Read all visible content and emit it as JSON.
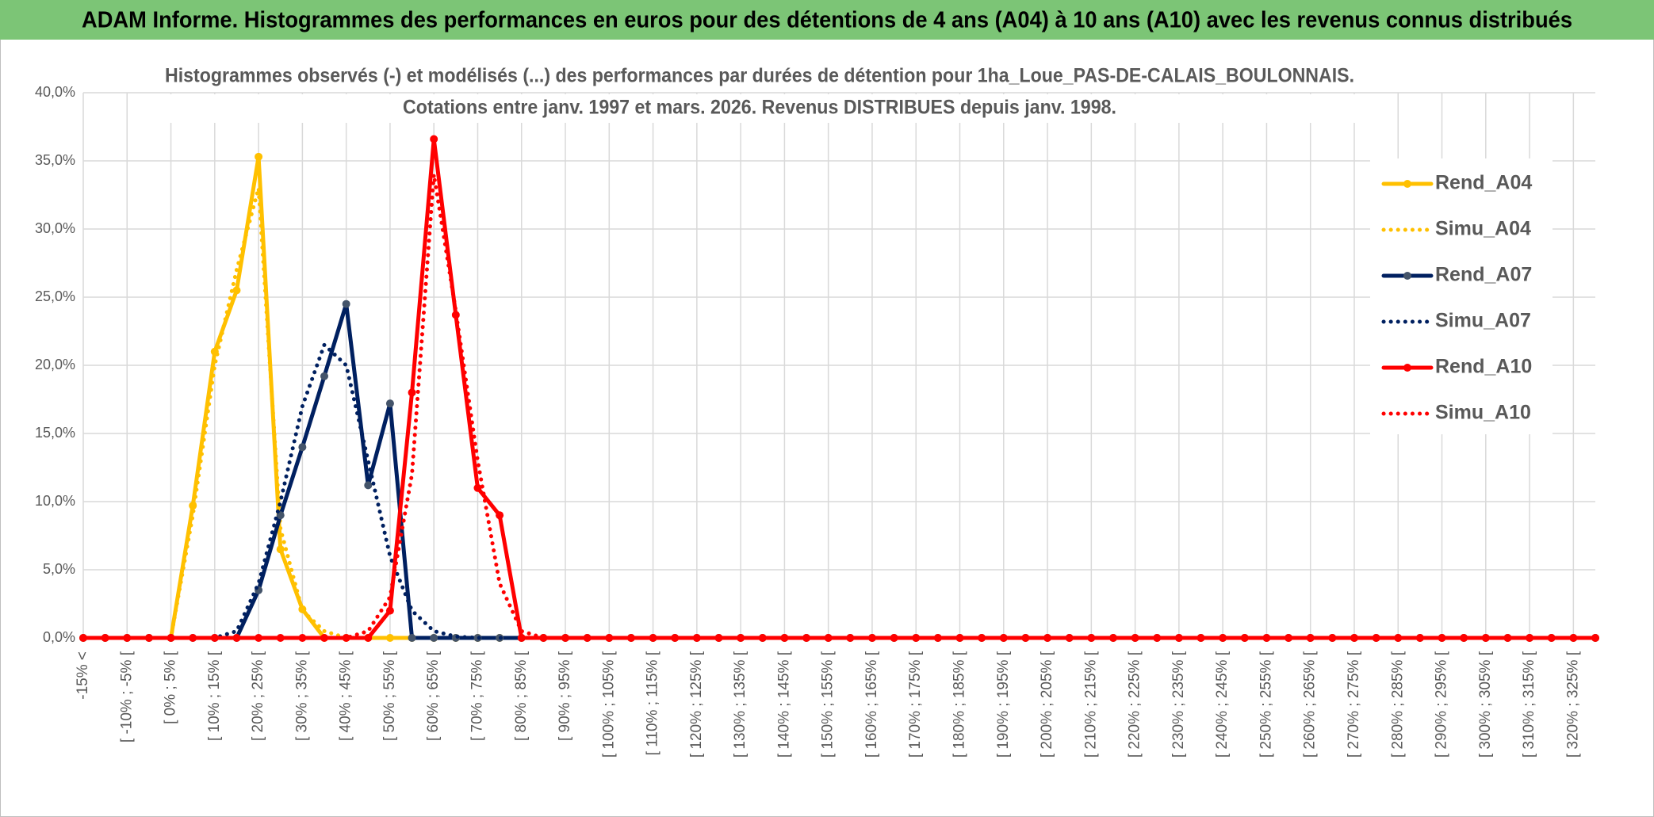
{
  "header": {
    "title": "ADAM Informe. Histogrammes des performances en euros pour des détentions de 4 ans (A04) à 10 ans (A10) avec les revenus connus distribués"
  },
  "chart_data": {
    "type": "line",
    "title": [
      "Histogrammes observés (-) et modélisés (...) des performances par durées de détention pour 1ha_Loue_PAS-DE-CALAIS_BOULONNAIS.",
      "Cotations entre janv. 1997 et mars. 2026. Revenus DISTRIBUES depuis janv. 1998."
    ],
    "categories": [
      "-15% <",
      null,
      "[ -10% ; -5% [",
      null,
      "[ 0% ; 5% [",
      null,
      "[ 10% ; 15% [",
      null,
      "[ 20% ; 25% [",
      null,
      "[ 30% ; 35% [",
      null,
      "[ 40% ; 45% [",
      null,
      "[ 50% ; 55% [",
      null,
      "[ 60% ; 65% [",
      null,
      "[ 70% ; 75% [",
      null,
      "[ 80% ; 85% [",
      null,
      "[ 90% ; 95% [",
      null,
      "[ 100% ; 105% [",
      null,
      "[ 110% ; 115% [",
      null,
      "[ 120% ; 125% [",
      null,
      "[ 130% ; 135% [",
      null,
      "[ 140% ; 145% [",
      null,
      "[ 150% ; 155% [",
      null,
      "[ 160% ; 165% [",
      null,
      "[ 170% ; 175% [",
      null,
      "[ 180% ; 185% [",
      null,
      "[ 190% ; 195% [",
      null,
      "[ 200% ; 205% [",
      null,
      "[ 210% ; 215% [",
      null,
      "[ 220% ; 225% [",
      null,
      "[ 230% ; 235% [",
      null,
      "[ 240% ; 245% [",
      null,
      "[ 250% ; 255% [",
      null,
      "[ 260% ; 265% [",
      null,
      "[ 270% ; 275% [",
      null,
      "[ 280% ; 285% [",
      null,
      "[ 290% ; 295% [",
      null,
      "[ 300% ; 305% [",
      null,
      "[ 310% ; 315% [",
      null,
      "[ 320% ; 325% [",
      null
    ],
    "series": [
      {
        "name": "Rend_A04",
        "color": "#ffc000",
        "style": "solid",
        "marker": true,
        "values": [
          0,
          0,
          0,
          0,
          0,
          9.7,
          21,
          25.5,
          35.3,
          6.5,
          2.1,
          0,
          0,
          0,
          0,
          0,
          0,
          0,
          0,
          0,
          0,
          0,
          0,
          0,
          0,
          0,
          0,
          0,
          0,
          0,
          0,
          0,
          0,
          0,
          0,
          0,
          0,
          0,
          0,
          0,
          0,
          0,
          0,
          0,
          0,
          0,
          0,
          0,
          0,
          0,
          0,
          0,
          0,
          0,
          0,
          0,
          0,
          0,
          0,
          0,
          0,
          0,
          0,
          0,
          0,
          0,
          0,
          0,
          0,
          0
        ]
      },
      {
        "name": "Simu_A04",
        "color": "#ffc000",
        "style": "dotted",
        "marker": false,
        "values": [
          0,
          0,
          0,
          0,
          0,
          9,
          20,
          27,
          33,
          8,
          2,
          0.5,
          0,
          0,
          0,
          0,
          0,
          0,
          0,
          0,
          0,
          0,
          0,
          0,
          0,
          0,
          0,
          0,
          0,
          0,
          0,
          0,
          0,
          0,
          0,
          0,
          0,
          0,
          0,
          0,
          0,
          0,
          0,
          0,
          0,
          0,
          0,
          0,
          0,
          0,
          0,
          0,
          0,
          0,
          0,
          0,
          0,
          0,
          0,
          0,
          0,
          0,
          0,
          0,
          0,
          0,
          0,
          0,
          0,
          0
        ]
      },
      {
        "name": "Rend_A07",
        "color": "#002060",
        "style": "solid",
        "marker": true,
        "values": [
          0,
          0,
          0,
          0,
          0,
          0,
          0,
          0,
          3.5,
          9,
          14,
          19.2,
          24.5,
          11.2,
          17.2,
          0,
          0,
          0,
          0,
          0,
          0,
          0,
          0,
          0,
          0,
          0,
          0,
          0,
          0,
          0,
          0,
          0,
          0,
          0,
          0,
          0,
          0,
          0,
          0,
          0,
          0,
          0,
          0,
          0,
          0,
          0,
          0,
          0,
          0,
          0,
          0,
          0,
          0,
          0,
          0,
          0,
          0,
          0,
          0,
          0,
          0,
          0,
          0,
          0,
          0,
          0,
          0,
          0,
          0,
          0
        ]
      },
      {
        "name": "Simu_A07",
        "color": "#002060",
        "style": "dotted",
        "marker": false,
        "values": [
          0,
          0,
          0,
          0,
          0,
          0,
          0,
          0.5,
          4,
          10,
          17,
          21.5,
          20,
          13,
          6,
          2,
          0.5,
          0.1,
          0,
          0,
          0,
          0,
          0,
          0,
          0,
          0,
          0,
          0,
          0,
          0,
          0,
          0,
          0,
          0,
          0,
          0,
          0,
          0,
          0,
          0,
          0,
          0,
          0,
          0,
          0,
          0,
          0,
          0,
          0,
          0,
          0,
          0,
          0,
          0,
          0,
          0,
          0,
          0,
          0,
          0,
          0,
          0,
          0,
          0,
          0,
          0,
          0,
          0,
          0,
          0
        ]
      },
      {
        "name": "Rend_A10",
        "color": "#ff0000",
        "style": "solid",
        "marker": true,
        "values": [
          0,
          0,
          0,
          0,
          0,
          0,
          0,
          0,
          0,
          0,
          0,
          0,
          0,
          0,
          2,
          18,
          36.6,
          23.7,
          11,
          9,
          0,
          0,
          0,
          0,
          0,
          0,
          0,
          0,
          0,
          0,
          0,
          0,
          0,
          0,
          0,
          0,
          0,
          0,
          0,
          0,
          0,
          0,
          0,
          0,
          0,
          0,
          0,
          0,
          0,
          0,
          0,
          0,
          0,
          0,
          0,
          0,
          0,
          0,
          0,
          0,
          0,
          0,
          0,
          0,
          0,
          0,
          0,
          0,
          0,
          0
        ]
      },
      {
        "name": "Simu_A10",
        "color": "#ff0000",
        "style": "dotted",
        "marker": false,
        "values": [
          0,
          0,
          0,
          0,
          0,
          0,
          0,
          0,
          0,
          0,
          0,
          0,
          0,
          0.5,
          3,
          12,
          34,
          24,
          13,
          4,
          0.5,
          0,
          0,
          0,
          0,
          0,
          0,
          0,
          0,
          0,
          0,
          0,
          0,
          0,
          0,
          0,
          0,
          0,
          0,
          0,
          0,
          0,
          0,
          0,
          0,
          0,
          0,
          0,
          0,
          0,
          0,
          0,
          0,
          0,
          0,
          0,
          0,
          0,
          0,
          0,
          0,
          0,
          0,
          0,
          0,
          0,
          0,
          0,
          0,
          0
        ]
      }
    ],
    "ylim": [
      0,
      40
    ],
    "yticks": [
      {
        "value": 0,
        "label": "0,0%"
      },
      {
        "value": 5,
        "label": "5,0%"
      },
      {
        "value": 10,
        "label": "10,0%"
      },
      {
        "value": 15,
        "label": "15,0%"
      },
      {
        "value": 20,
        "label": "20,0%"
      },
      {
        "value": 25,
        "label": "25,0%"
      },
      {
        "value": 30,
        "label": "30,0%"
      },
      {
        "value": 35,
        "label": "35,0%"
      },
      {
        "value": 40,
        "label": "40,0%"
      }
    ],
    "grid": true,
    "legend": "right"
  }
}
